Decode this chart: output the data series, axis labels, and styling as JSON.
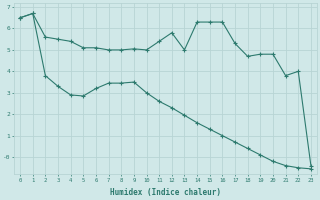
{
  "xlabel": "Humidex (Indice chaleur)",
  "x": [
    0,
    1,
    2,
    3,
    4,
    5,
    6,
    7,
    8,
    9,
    10,
    11,
    12,
    13,
    14,
    15,
    16,
    17,
    18,
    19,
    20,
    21,
    22,
    23
  ],
  "line1": [
    6.5,
    6.7,
    5.6,
    5.5,
    5.4,
    5.1,
    5.1,
    5.0,
    5.0,
    5.05,
    5.0,
    5.4,
    5.8,
    5.0,
    6.3,
    6.3,
    6.3,
    5.3,
    4.7,
    4.8,
    4.8,
    3.8,
    4.0,
    -0.4
  ],
  "line2": [
    6.5,
    6.7,
    3.8,
    3.3,
    2.9,
    2.85,
    3.2,
    3.45,
    3.45,
    3.5,
    3.0,
    2.6,
    2.3,
    1.95,
    1.6,
    1.3,
    1.0,
    0.7,
    0.4,
    0.1,
    -0.2,
    -0.4,
    -0.5,
    -0.55
  ],
  "color": "#2d7a6e",
  "bg_color": "#d0e8e8",
  "grid_color": "#b8d4d4",
  "ylim": [
    -0.8,
    7.2
  ],
  "ytick_vals": [
    0,
    1,
    2,
    3,
    4,
    5,
    6,
    7
  ],
  "ytick_labels": [
    "-0",
    "1",
    "2",
    "3",
    "4",
    "5",
    "6",
    "7"
  ]
}
